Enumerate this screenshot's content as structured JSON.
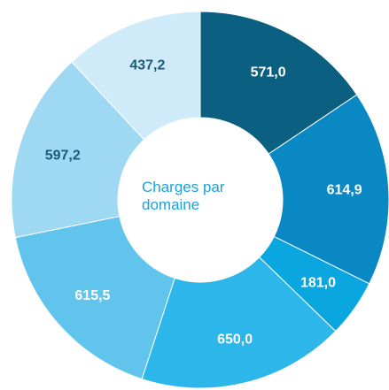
{
  "chart_data": {
    "type": "donut",
    "title": "Charges par domaine",
    "categories": [
      null,
      null,
      null,
      null,
      null,
      null,
      null
    ],
    "values": [
      571.0,
      614.9,
      181.0,
      650.0,
      615.5,
      597.2,
      437.2
    ],
    "value_labels": [
      "571,0",
      "614,9",
      "181,0",
      "650,0",
      "615,5",
      "597,2",
      "437,2"
    ],
    "colors": [
      "#0b5f80",
      "#0a88c4",
      "#0aa6df",
      "#2db6e9",
      "#61c4ed",
      "#9fd8f3",
      "#cfeaf8"
    ],
    "label_colors": [
      "#ffffff",
      "#ffffff",
      "#ffffff",
      "#ffffff",
      "#ffffff",
      "#1b5a78",
      "#1b5a78"
    ]
  }
}
